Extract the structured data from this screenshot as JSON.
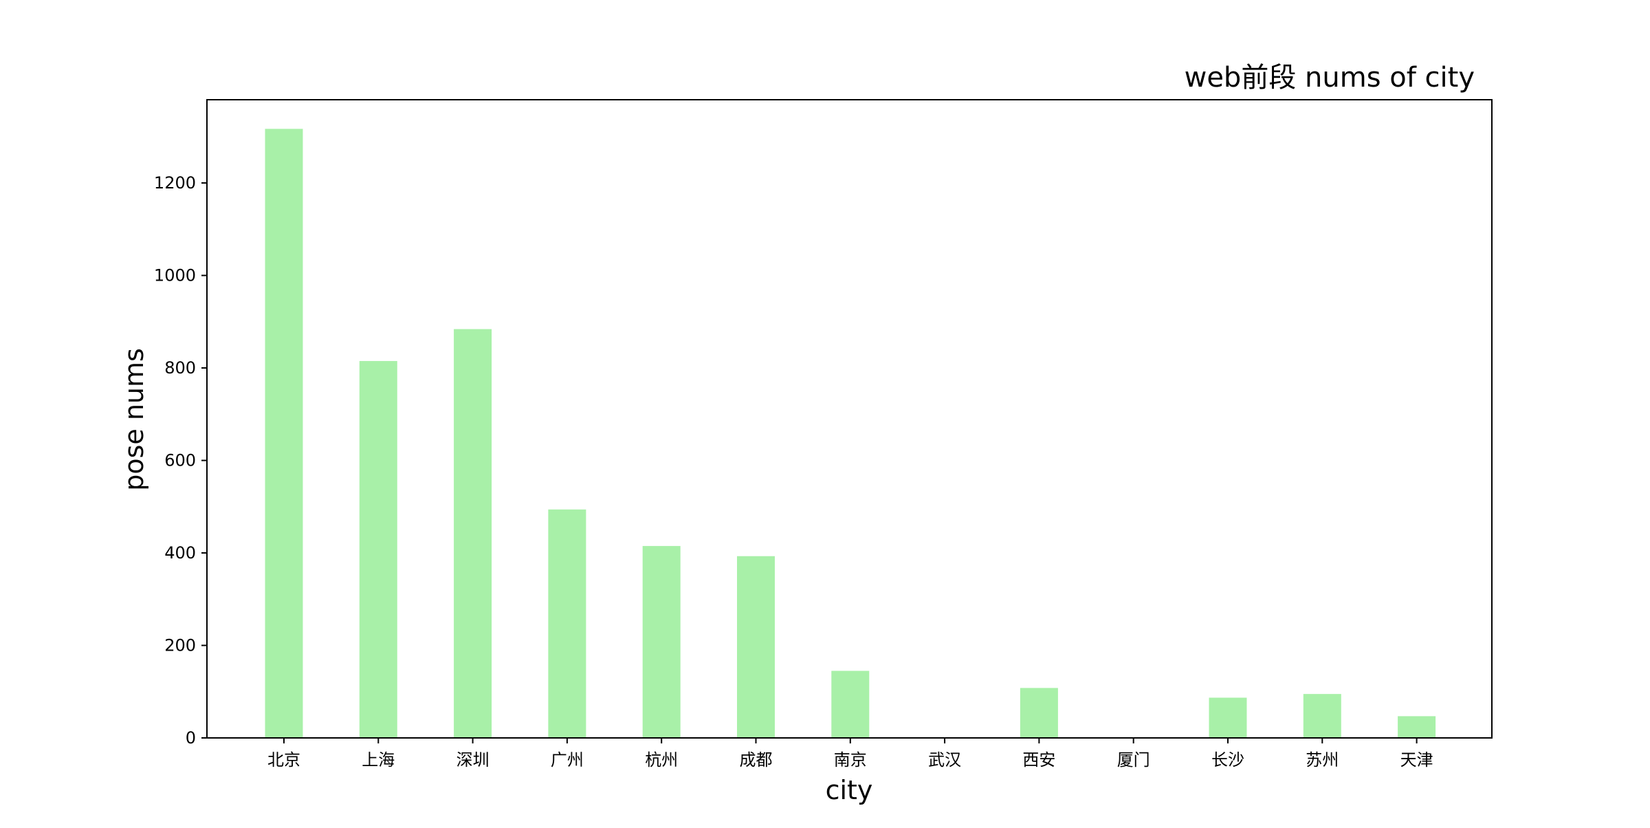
{
  "chart_data": {
    "type": "bar",
    "title": "web前段 nums of city",
    "xlabel": "city",
    "ylabel": "pose nums",
    "categories": [
      "北京",
      "上海",
      "深圳",
      "广州",
      "杭州",
      "成都",
      "南京",
      "武汉",
      "西安",
      "厦门",
      "长沙",
      "苏州",
      "天津"
    ],
    "values": [
      1317,
      815,
      884,
      494,
      415,
      393,
      145,
      0,
      108,
      0,
      87,
      95,
      47
    ],
    "ylim": [
      0,
      1380
    ],
    "yticks": [
      0,
      200,
      400,
      600,
      800,
      1000,
      1200
    ],
    "bar_color": "#a8f0a8",
    "grid": false,
    "legend": "none"
  }
}
